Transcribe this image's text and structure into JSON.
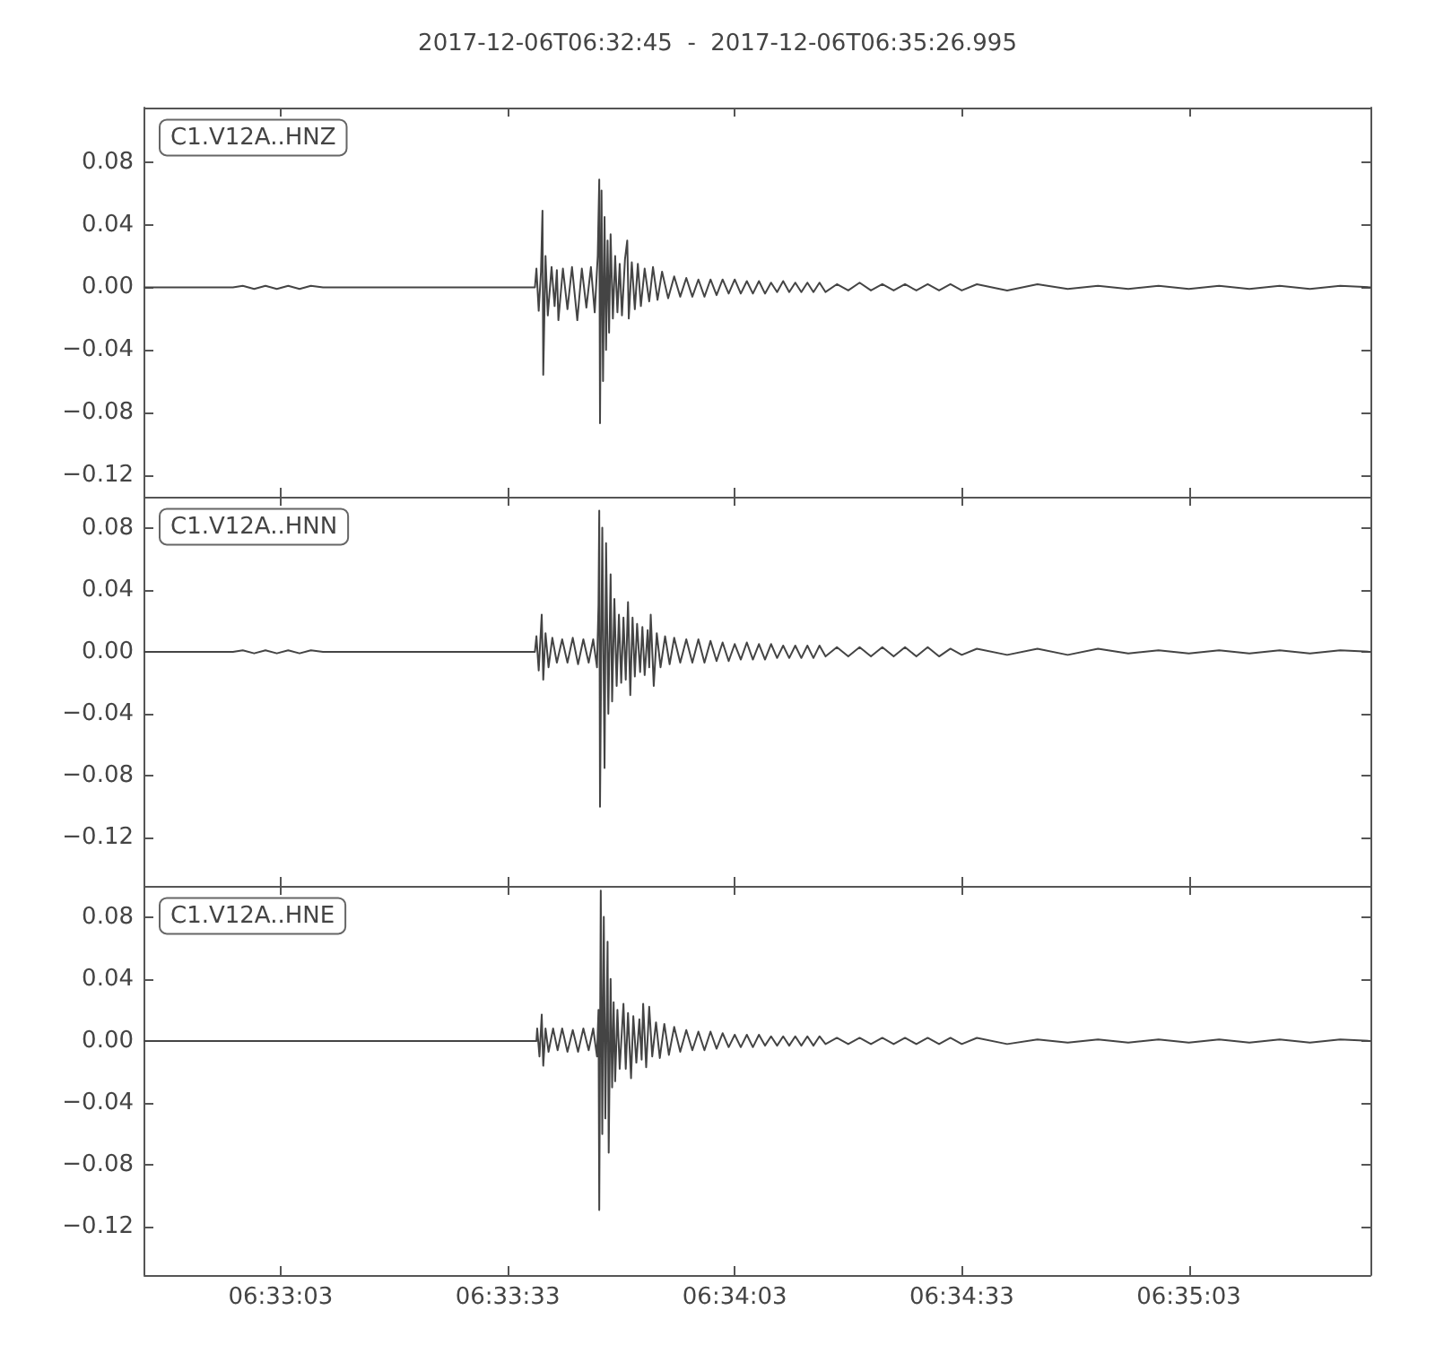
{
  "chart_data": [
    {
      "type": "line",
      "title": "2017-12-06T06:32:45  -  2017-12-06T06:35:26.995",
      "legend": "top left",
      "tick_labels": "y",
      "xlim": [
        "2017-12-06T06:32:45",
        "2017-12-06T06:35:26.995"
      ],
      "xticks": [
        {
          "value": "2017-12-06T06:33:03",
          "label": null
        },
        {
          "value": "2017-12-06T06:33:33",
          "label": null
        },
        {
          "value": "2017-12-06T06:34:03",
          "label": null
        },
        {
          "value": "2017-12-06T06:34:33",
          "label": null
        },
        {
          "value": "2017-12-06T06:35:03",
          "label": null
        }
      ],
      "ylim": [
        -0.134,
        0.115
      ],
      "yticks": [
        {
          "value": -0.12,
          "label": "−0.12"
        },
        {
          "value": -0.08,
          "label": "−0.08"
        },
        {
          "value": -0.04,
          "label": "−0.04"
        },
        {
          "value": 0,
          "label": "0.00"
        },
        {
          "value": 0.04,
          "label": "0.04"
        },
        {
          "value": 0.08,
          "label": "0.08"
        }
      ],
      "x": [
        "2017-12-06T06:32:45",
        "2017-12-06T06:32:56.7",
        "2017-12-06T06:32:58",
        "2017-12-06T06:32:59.5",
        "2017-12-06T06:33:01",
        "2017-12-06T06:33:02.5",
        "2017-12-06T06:33:04",
        "2017-12-06T06:33:05.5",
        "2017-12-06T06:33:07",
        "2017-12-06T06:33:08.6",
        "2017-12-06T06:33:36.6",
        "2017-12-06T06:33:36.8",
        "2017-12-06T06:33:37.1",
        "2017-12-06T06:33:37.4",
        "2017-12-06T06:33:37.6",
        "2017-12-06T06:33:37.7",
        "2017-12-06T06:33:38",
        "2017-12-06T06:33:38.3",
        "2017-12-06T06:33:38.8",
        "2017-12-06T06:33:39.2",
        "2017-12-06T06:33:39.5",
        "2017-12-06T06:33:39.7",
        "2017-12-06T06:33:40.3",
        "2017-12-06T06:33:40.9",
        "2017-12-06T06:33:41.5",
        "2017-12-06T06:33:42.2",
        "2017-12-06T06:33:42.8",
        "2017-12-06T06:33:43.4",
        "2017-12-06T06:33:44",
        "2017-12-06T06:33:44.5",
        "2017-12-06T06:33:44.9",
        "2017-12-06T06:33:45.1",
        "2017-12-06T06:33:45.2",
        "2017-12-06T06:33:45.4",
        "2017-12-06T06:33:45.6",
        "2017-12-06T06:33:45.8",
        "2017-12-06T06:33:46",
        "2017-12-06T06:33:46.2",
        "2017-12-06T06:33:46.4",
        "2017-12-06T06:33:46.6",
        "2017-12-06T06:33:46.9",
        "2017-12-06T06:33:47.2",
        "2017-12-06T06:33:47.5",
        "2017-12-06T06:33:47.8",
        "2017-12-06T06:33:48.1",
        "2017-12-06T06:33:48.5",
        "2017-12-06T06:33:48.8",
        "2017-12-06T06:33:49",
        "2017-12-06T06:33:49.4",
        "2017-12-06T06:33:49.8",
        "2017-12-06T06:33:50.2",
        "2017-12-06T06:33:50.6",
        "2017-12-06T06:33:51.1",
        "2017-12-06T06:33:51.7",
        "2017-12-06T06:33:52.2",
        "2017-12-06T06:33:52.8",
        "2017-12-06T06:33:53.4",
        "2017-12-06T06:33:54.2",
        "2017-12-06T06:33:55",
        "2017-12-06T06:33:55.8",
        "2017-12-06T06:33:56.6",
        "2017-12-06T06:33:57.4",
        "2017-12-06T06:33:58.2",
        "2017-12-06T06:33:59",
        "2017-12-06T06:33:59.8",
        "2017-12-06T06:34:00.6",
        "2017-12-06T06:34:01.4",
        "2017-12-06T06:34:02.2",
        "2017-12-06T06:34:03",
        "2017-12-06T06:34:03.8",
        "2017-12-06T06:34:04.6",
        "2017-12-06T06:34:05.4",
        "2017-12-06T06:34:06.2",
        "2017-12-06T06:34:07",
        "2017-12-06T06:34:07.8",
        "2017-12-06T06:34:08.6",
        "2017-12-06T06:34:09.4",
        "2017-12-06T06:34:10.2",
        "2017-12-06T06:34:11",
        "2017-12-06T06:34:11.8",
        "2017-12-06T06:34:12.6",
        "2017-12-06T06:34:13.4",
        "2017-12-06T06:34:14.2",
        "2017-12-06T06:34:15",
        "2017-12-06T06:34:16.5",
        "2017-12-06T06:34:18",
        "2017-12-06T06:34:19.5",
        "2017-12-06T06:34:21",
        "2017-12-06T06:34:22.5",
        "2017-12-06T06:34:24",
        "2017-12-06T06:34:25.5",
        "2017-12-06T06:34:27",
        "2017-12-06T06:34:28.5",
        "2017-12-06T06:34:30",
        "2017-12-06T06:34:31.5",
        "2017-12-06T06:34:33",
        "2017-12-06T06:34:35",
        "2017-12-06T06:34:39",
        "2017-12-06T06:34:43",
        "2017-12-06T06:34:47",
        "2017-12-06T06:34:51",
        "2017-12-06T06:34:55",
        "2017-12-06T06:34:59",
        "2017-12-06T06:35:03",
        "2017-12-06T06:35:07",
        "2017-12-06T06:35:11",
        "2017-12-06T06:35:15",
        "2017-12-06T06:35:19",
        "2017-12-06T06:35:23",
        "2017-12-06T06:35:26.995"
      ],
      "series": [
        {
          "name": "C1.V12A..HNZ",
          "color": "#444444",
          "values": [
            0,
            0,
            0.001,
            -0.001,
            0.001,
            -0.001,
            0.001,
            -0.001,
            0.001,
            0,
            0,
            0.012,
            -0.015,
            0.01,
            0.049,
            -0.056,
            0.02,
            -0.018,
            0.013,
            -0.012,
            0.011,
            -0.021,
            0.012,
            -0.014,
            0.013,
            -0.021,
            0.012,
            -0.013,
            0.013,
            -0.016,
            0.02,
            0.069,
            -0.087,
            0.062,
            -0.06,
            0.045,
            -0.04,
            0.03,
            -0.029,
            0.034,
            -0.02,
            0.02,
            -0.016,
            0.015,
            -0.018,
            0.018,
            0.03,
            -0.02,
            0.016,
            -0.014,
            0.015,
            -0.012,
            0.012,
            -0.009,
            0.013,
            -0.008,
            0.01,
            -0.007,
            0.007,
            -0.006,
            0.006,
            -0.006,
            0.005,
            -0.006,
            0.005,
            -0.005,
            0.005,
            -0.004,
            0.005,
            -0.004,
            0.004,
            -0.004,
            0.004,
            -0.004,
            0.003,
            -0.003,
            0.004,
            -0.003,
            0.003,
            -0.003,
            0.003,
            -0.003,
            0.003,
            -0.003,
            0.002,
            -0.002,
            0.003,
            -0.002,
            0.002,
            -0.002,
            0.002,
            -0.002,
            0.002,
            -0.002,
            0.002,
            -0.002,
            0.002,
            -0.002,
            0.002,
            -0.001,
            0.001,
            -0.001,
            0.001,
            -0.001,
            0.001,
            -0.001,
            0.001,
            -0.001,
            0.001,
            0
          ]
        }
      ]
    },
    {
      "type": "line",
      "legend": "top left",
      "tick_labels": "y",
      "xlim": [
        "2017-12-06T06:32:45",
        "2017-12-06T06:35:26.995"
      ],
      "xticks": [
        {
          "value": "2017-12-06T06:33:03",
          "label": null
        },
        {
          "value": "2017-12-06T06:33:33",
          "label": null
        },
        {
          "value": "2017-12-06T06:34:03",
          "label": null
        },
        {
          "value": "2017-12-06T06:34:33",
          "label": null
        },
        {
          "value": "2017-12-06T06:35:03",
          "label": null
        }
      ],
      "ylim": [
        -0.151,
        0.1
      ],
      "yticks": [
        {
          "value": -0.12,
          "label": "−0.12"
        },
        {
          "value": -0.08,
          "label": "−0.08"
        },
        {
          "value": -0.04,
          "label": "−0.04"
        },
        {
          "value": 0,
          "label": "0.00"
        },
        {
          "value": 0.04,
          "label": "0.04"
        },
        {
          "value": 0.08,
          "label": "0.08"
        }
      ],
      "x": [
        "2017-12-06T06:32:45",
        "2017-12-06T06:32:56.7",
        "2017-12-06T06:32:58",
        "2017-12-06T06:32:59.5",
        "2017-12-06T06:33:01",
        "2017-12-06T06:33:02.5",
        "2017-12-06T06:33:04",
        "2017-12-06T06:33:05.5",
        "2017-12-06T06:33:07",
        "2017-12-06T06:33:08.6",
        "2017-12-06T06:33:36.6",
        "2017-12-06T06:33:36.8",
        "2017-12-06T06:33:37.1",
        "2017-12-06T06:33:37.5",
        "2017-12-06T06:33:37.7",
        "2017-12-06T06:33:38",
        "2017-12-06T06:33:38.4",
        "2017-12-06T06:33:38.9",
        "2017-12-06T06:33:39.5",
        "2017-12-06T06:33:40.2",
        "2017-12-06T06:33:40.9",
        "2017-12-06T06:33:41.6",
        "2017-12-06T06:33:42.3",
        "2017-12-06T06:33:43",
        "2017-12-06T06:33:43.7",
        "2017-12-06T06:33:44.3",
        "2017-12-06T06:33:44.8",
        "2017-12-06T06:33:45",
        "2017-12-06T06:33:45.1",
        "2017-12-06T06:33:45.2",
        "2017-12-06T06:33:45.5",
        "2017-12-06T06:33:45.8",
        "2017-12-06T06:33:46",
        "2017-12-06T06:33:46.3",
        "2017-12-06T06:33:46.6",
        "2017-12-06T06:33:46.8",
        "2017-12-06T06:33:47.1",
        "2017-12-06T06:33:47.4",
        "2017-12-06T06:33:47.7",
        "2017-12-06T06:33:48",
        "2017-12-06T06:33:48.3",
        "2017-12-06T06:33:48.6",
        "2017-12-06T06:33:48.9",
        "2017-12-06T06:33:49.2",
        "2017-12-06T06:33:49.5",
        "2017-12-06T06:33:49.8",
        "2017-12-06T06:33:50.1",
        "2017-12-06T06:33:50.5",
        "2017-12-06T06:33:50.8",
        "2017-12-06T06:33:51.1",
        "2017-12-06T06:33:51.5",
        "2017-12-06T06:33:51.7",
        "2017-12-06T06:33:51.9",
        "2017-12-06T06:33:52.3",
        "2017-12-06T06:33:52.7",
        "2017-12-06T06:33:53.2",
        "2017-12-06T06:33:53.8",
        "2017-12-06T06:33:54.4",
        "2017-12-06T06:33:55",
        "2017-12-06T06:33:55.8",
        "2017-12-06T06:33:56.6",
        "2017-12-06T06:33:57.4",
        "2017-12-06T06:33:58.2",
        "2017-12-06T06:33:59",
        "2017-12-06T06:33:59.8",
        "2017-12-06T06:34:00.6",
        "2017-12-06T06:34:01.4",
        "2017-12-06T06:34:02.2",
        "2017-12-06T06:34:03",
        "2017-12-06T06:34:03.8",
        "2017-12-06T06:34:04.6",
        "2017-12-06T06:34:05.4",
        "2017-12-06T06:34:06.2",
        "2017-12-06T06:34:07",
        "2017-12-06T06:34:07.8",
        "2017-12-06T06:34:08.6",
        "2017-12-06T06:34:09.4",
        "2017-12-06T06:34:10.2",
        "2017-12-06T06:34:11",
        "2017-12-06T06:34:11.8",
        "2017-12-06T06:34:12.6",
        "2017-12-06T06:34:13.4",
        "2017-12-06T06:34:14.2",
        "2017-12-06T06:34:15",
        "2017-12-06T06:34:16.5",
        "2017-12-06T06:34:18",
        "2017-12-06T06:34:19.5",
        "2017-12-06T06:34:21",
        "2017-12-06T06:34:22.5",
        "2017-12-06T06:34:24",
        "2017-12-06T06:34:25.5",
        "2017-12-06T06:34:27",
        "2017-12-06T06:34:28.5",
        "2017-12-06T06:34:30",
        "2017-12-06T06:34:31.5",
        "2017-12-06T06:34:33",
        "2017-12-06T06:34:35",
        "2017-12-06T06:34:39",
        "2017-12-06T06:34:43",
        "2017-12-06T06:34:47",
        "2017-12-06T06:34:51",
        "2017-12-06T06:34:55",
        "2017-12-06T06:34:59",
        "2017-12-06T06:35:03",
        "2017-12-06T06:35:07",
        "2017-12-06T06:35:11",
        "2017-12-06T06:35:15",
        "2017-12-06T06:35:19",
        "2017-12-06T06:35:23",
        "2017-12-06T06:35:26.995"
      ],
      "series": [
        {
          "name": "C1.V12A..HNN",
          "color": "#444444",
          "values": [
            0,
            0,
            0.001,
            -0.001,
            0.001,
            -0.001,
            0.001,
            -0.001,
            0.001,
            0,
            0,
            0.01,
            -0.012,
            0.024,
            -0.018,
            0.012,
            -0.01,
            0.009,
            -0.007,
            0.008,
            -0.007,
            0.009,
            -0.008,
            0.008,
            -0.007,
            0.008,
            -0.01,
            0.03,
            0.091,
            -0.1,
            0.08,
            -0.075,
            0.07,
            -0.04,
            0.05,
            -0.032,
            0.034,
            -0.022,
            0.024,
            -0.02,
            0.022,
            -0.018,
            0.032,
            -0.028,
            0.022,
            -0.016,
            0.018,
            -0.013,
            0.016,
            -0.015,
            0.014,
            -0.01,
            0.024,
            -0.022,
            0.012,
            -0.01,
            0.01,
            -0.008,
            0.009,
            -0.007,
            0.008,
            -0.007,
            0.008,
            -0.007,
            0.007,
            -0.006,
            0.006,
            -0.006,
            0.005,
            -0.005,
            0.006,
            -0.005,
            0.005,
            -0.005,
            0.005,
            -0.004,
            0.004,
            -0.004,
            0.004,
            -0.004,
            0.004,
            -0.004,
            0.004,
            -0.003,
            0.003,
            -0.003,
            0.003,
            -0.003,
            0.003,
            -0.003,
            0.003,
            -0.003,
            0.003,
            -0.003,
            0.002,
            -0.002,
            0.002,
            -0.002,
            0.002,
            -0.002,
            0.002,
            -0.001,
            0.001,
            -0.001,
            0.001,
            -0.001,
            0.001,
            -0.001,
            0.001,
            0
          ]
        }
      ]
    },
    {
      "type": "line",
      "legend": "top left",
      "xlim": [
        "2017-12-06T06:32:45",
        "2017-12-06T06:35:26.995"
      ],
      "xticks": [
        {
          "value": "2017-12-06T06:33:03",
          "label": "06:33:03"
        },
        {
          "value": "2017-12-06T06:33:33",
          "label": "06:33:33"
        },
        {
          "value": "2017-12-06T06:34:03",
          "label": "06:34:03"
        },
        {
          "value": "2017-12-06T06:34:33",
          "label": "06:34:33"
        },
        {
          "value": "2017-12-06T06:35:03",
          "label": "06:35:03"
        }
      ],
      "ylim": [
        -0.151,
        0.1
      ],
      "yticks": [
        {
          "value": -0.12,
          "label": "−0.12"
        },
        {
          "value": -0.08,
          "label": "−0.08"
        },
        {
          "value": -0.04,
          "label": "−0.04"
        },
        {
          "value": 0,
          "label": "0.00"
        },
        {
          "value": 0.04,
          "label": "0.04"
        },
        {
          "value": 0.08,
          "label": "0.08"
        }
      ],
      "x": [
        "2017-12-06T06:32:45",
        "2017-12-06T06:33:36.8",
        "2017-12-06T06:33:36.9",
        "2017-12-06T06:33:37.2",
        "2017-12-06T06:33:37.5",
        "2017-12-06T06:33:37.7",
        "2017-12-06T06:33:38",
        "2017-12-06T06:33:38.4",
        "2017-12-06T06:33:39",
        "2017-12-06T06:33:39.6",
        "2017-12-06T06:33:40.2",
        "2017-12-06T06:33:40.9",
        "2017-12-06T06:33:41.6",
        "2017-12-06T06:33:42.3",
        "2017-12-06T06:33:43",
        "2017-12-06T06:33:43.7",
        "2017-12-06T06:33:44.3",
        "2017-12-06T06:33:44.8",
        "2017-12-06T06:33:45",
        "2017-12-06T06:33:45.1",
        "2017-12-06T06:33:45.3",
        "2017-12-06T06:33:45.5",
        "2017-12-06T06:33:45.7",
        "2017-12-06T06:33:45.9",
        "2017-12-06T06:33:46.2",
        "2017-12-06T06:33:46.35",
        "2017-12-06T06:33:46.6",
        "2017-12-06T06:33:46.8",
        "2017-12-06T06:33:47",
        "2017-12-06T06:33:47.2",
        "2017-12-06T06:33:47.5",
        "2017-12-06T06:33:47.8",
        "2017-12-06T06:33:48.3",
        "2017-12-06T06:33:48.6",
        "2017-12-06T06:33:48.9",
        "2017-12-06T06:33:49.3",
        "2017-12-06T06:33:49.6",
        "2017-12-06T06:33:50",
        "2017-12-06T06:33:50.4",
        "2017-12-06T06:33:50.7",
        "2017-12-06T06:33:50.9",
        "2017-12-06T06:33:51.3",
        "2017-12-06T06:33:51.7",
        "2017-12-06T06:33:52.1",
        "2017-12-06T06:33:52.6",
        "2017-12-06T06:33:53.1",
        "2017-12-06T06:33:53.7",
        "2017-12-06T06:33:54.3",
        "2017-12-06T06:33:55",
        "2017-12-06T06:33:55.8",
        "2017-12-06T06:33:56.6",
        "2017-12-06T06:33:57.4",
        "2017-12-06T06:33:58.2",
        "2017-12-06T06:33:59",
        "2017-12-06T06:33:59.8",
        "2017-12-06T06:34:00.6",
        "2017-12-06T06:34:01.4",
        "2017-12-06T06:34:02.2",
        "2017-12-06T06:34:03",
        "2017-12-06T06:34:03.8",
        "2017-12-06T06:34:04.6",
        "2017-12-06T06:34:05.4",
        "2017-12-06T06:34:06.2",
        "2017-12-06T06:34:07",
        "2017-12-06T06:34:07.8",
        "2017-12-06T06:34:08.6",
        "2017-12-06T06:34:09.4",
        "2017-12-06T06:34:10.2",
        "2017-12-06T06:34:11",
        "2017-12-06T06:34:11.8",
        "2017-12-06T06:34:12.6",
        "2017-12-06T06:34:13.4",
        "2017-12-06T06:34:14.2",
        "2017-12-06T06:34:15",
        "2017-12-06T06:34:16.5",
        "2017-12-06T06:34:18",
        "2017-12-06T06:34:19.5",
        "2017-12-06T06:34:21",
        "2017-12-06T06:34:22.5",
        "2017-12-06T06:34:24",
        "2017-12-06T06:34:25.5",
        "2017-12-06T06:34:27",
        "2017-12-06T06:34:28.5",
        "2017-12-06T06:34:30",
        "2017-12-06T06:34:31.5",
        "2017-12-06T06:34:33",
        "2017-12-06T06:34:35",
        "2017-12-06T06:34:39",
        "2017-12-06T06:34:43",
        "2017-12-06T06:34:47",
        "2017-12-06T06:34:51",
        "2017-12-06T06:34:55",
        "2017-12-06T06:34:59",
        "2017-12-06T06:35:03",
        "2017-12-06T06:35:07",
        "2017-12-06T06:35:11",
        "2017-12-06T06:35:15",
        "2017-12-06T06:35:19",
        "2017-12-06T06:35:23",
        "2017-12-06T06:35:26.995"
      ],
      "series": [
        {
          "name": "C1.V12A..HNE",
          "color": "#444444",
          "values": [
            0,
            0,
            0.008,
            -0.01,
            0.017,
            -0.016,
            0.008,
            -0.007,
            0.008,
            -0.006,
            0.008,
            -0.007,
            0.007,
            -0.007,
            0.008,
            -0.006,
            0.008,
            -0.01,
            0.02,
            -0.109,
            0.097,
            -0.06,
            0.08,
            -0.05,
            0.064,
            -0.072,
            0.04,
            -0.03,
            0.025,
            -0.026,
            0.02,
            -0.018,
            0.024,
            -0.018,
            0.018,
            -0.024,
            0.016,
            -0.014,
            0.014,
            -0.012,
            0.024,
            -0.017,
            0.022,
            -0.01,
            0.012,
            -0.011,
            0.011,
            -0.009,
            0.009,
            -0.007,
            0.007,
            -0.006,
            0.006,
            -0.006,
            0.006,
            -0.005,
            0.005,
            -0.004,
            0.004,
            -0.004,
            0.004,
            -0.004,
            0.004,
            -0.003,
            0.003,
            -0.003,
            0.003,
            -0.003,
            0.003,
            -0.003,
            0.003,
            -0.003,
            0.003,
            -0.002,
            0.002,
            -0.002,
            0.002,
            -0.002,
            0.002,
            -0.002,
            0.002,
            -0.002,
            0.002,
            -0.002,
            0.002,
            -0.002,
            0.002,
            -0.002,
            0.001,
            -0.001,
            0.001,
            -0.001,
            0.001,
            -0.001,
            0.001,
            -0.001,
            0.001,
            -0.001,
            0.001,
            0
          ]
        }
      ]
    }
  ]
}
